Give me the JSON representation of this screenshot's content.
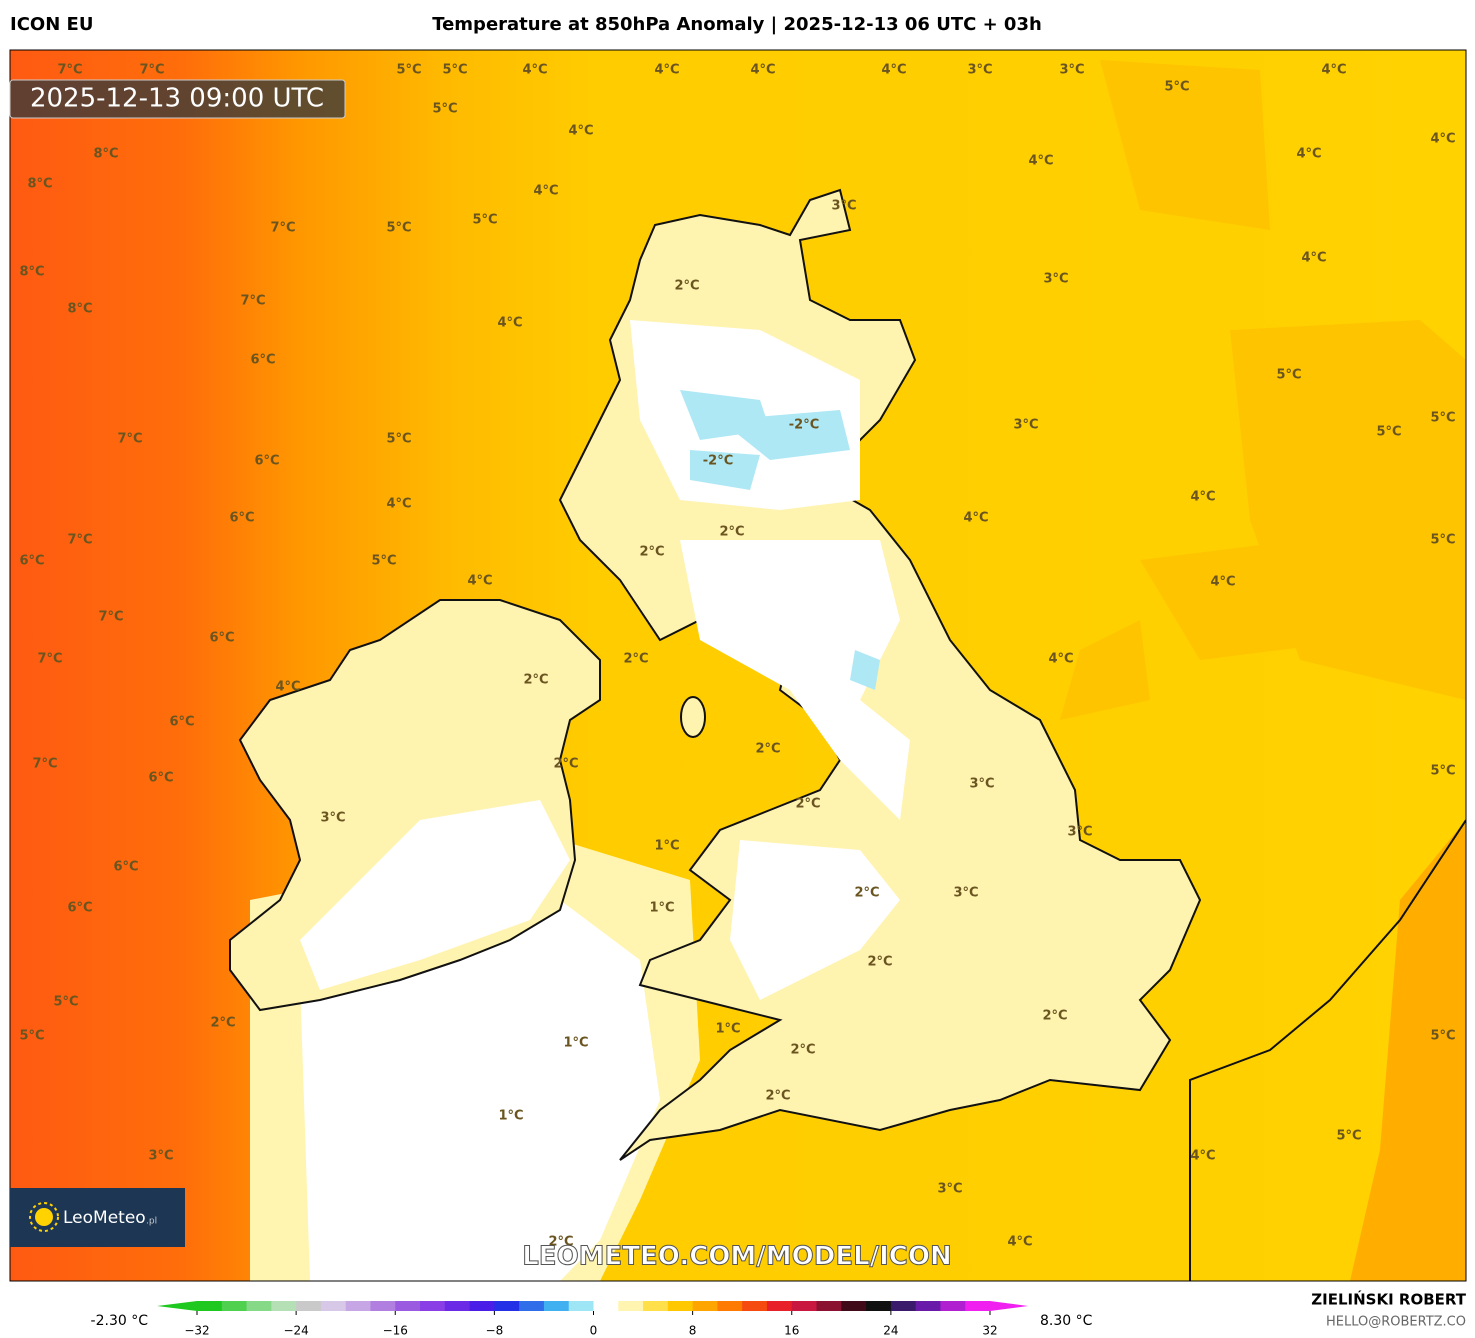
{
  "header": {
    "model": "ICON EU",
    "title": "Temperature at 850hPa Anomaly | 2025-12-13 06 UTC + 03h"
  },
  "map": {
    "timestamp": "2025-12-13 09:00 UTC",
    "watermark": "LEOMETEO.COM/MODEL/ICON",
    "logo": "LeoMeteo",
    "logo_suffix": ".pl",
    "labels": [
      "7°C",
      "7°C",
      "5°C",
      "5°C",
      "4°C",
      "4°C",
      "4°C",
      "4°C",
      "3°C",
      "3°C",
      "4°C",
      "5°C",
      "5°C",
      "4°C",
      "4°C",
      "8°C",
      "4°C",
      "4°C",
      "8°C",
      "4°C",
      "3°C",
      "5°C",
      "7°C",
      "5°C",
      "4°C",
      "8°C",
      "3°C",
      "2°C",
      "7°C",
      "8°C",
      "4°C",
      "6°C",
      "5°C",
      "5°C",
      "-2°C",
      "3°C",
      "5°C",
      "7°C",
      "5°C",
      "-2°C",
      "6°C",
      "4°C",
      "4°C",
      "6°C",
      "4°C",
      "2°C",
      "7°C",
      "5°C",
      "2°C",
      "6°C",
      "5°C",
      "4°C",
      "4°C",
      "7°C",
      "6°C",
      "7°C",
      "2°C",
      "4°C",
      "2°C",
      "4°C",
      "6°C",
      "2°C",
      "7°C",
      "2°C",
      "6°C",
      "5°C",
      "3°C",
      "2°C",
      "3°C",
      "3°C",
      "1°C",
      "6°C",
      "2°C",
      "3°C",
      "6°C",
      "1°C",
      "2°C",
      "5°C",
      "2°C",
      "2°C",
      "1°C",
      "5°C",
      "5°C",
      "1°C",
      "2°C",
      "2°C",
      "1°C",
      "5°C",
      "3°C",
      "4°C",
      "3°C",
      "2°C",
      "4°C"
    ]
  },
  "colorbar": {
    "min_label": "-2.30 °C",
    "max_label": "8.30 °C",
    "lim": [
      -32,
      32
    ],
    "ticks": [
      {
        "value": -32,
        "label": "−32"
      },
      {
        "value": -24,
        "label": "−24"
      },
      {
        "value": -16,
        "label": "−16"
      },
      {
        "value": -8,
        "label": "−8"
      },
      0,
      8,
      16,
      24,
      32
    ],
    "colors": [
      "#1ec81e",
      "#4fd14f",
      "#86d986",
      "#b5dfb5",
      "#c9c9c9",
      "#d8c8e8",
      "#c7a6e6",
      "#b07fe0",
      "#9a5be0",
      "#8a3ee6",
      "#6b2be6",
      "#4a1ee6",
      "#2430e6",
      "#2f6ee8",
      "#40b0f0",
      "#9ee6f5",
      "#ffffff",
      "#fff5b0",
      "#ffe04a",
      "#ffc800",
      "#ffa500",
      "#ff7a00",
      "#f54a10",
      "#e8202a",
      "#c81840",
      "#8a1230",
      "#400a18",
      "#101010",
      "#3a1a6a",
      "#6a1aa8",
      "#b020d0",
      "#f020f0"
    ]
  },
  "footer": {
    "author": "ZIELIŃSKI ROBERT",
    "contact": "HELLO@ROBERTZ.CO"
  }
}
